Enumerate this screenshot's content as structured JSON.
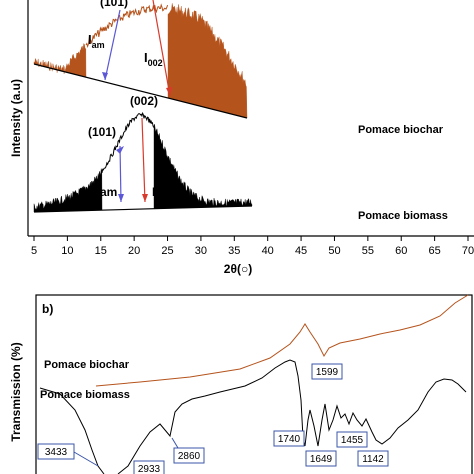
{
  "chart_data": [
    {
      "panel_label": "",
      "type": "line",
      "xlabel": "2θ(○)",
      "ylabel": "Intensity (a.u)",
      "xlim": [
        5,
        70
      ],
      "x_ticks": [
        5,
        10,
        15,
        20,
        25,
        30,
        35,
        40,
        45,
        50,
        55,
        60,
        65,
        70
      ],
      "grid": false,
      "series": [
        {
          "name": "Pomace biochar",
          "color": "#b5531c"
        },
        {
          "name": "Pomace biomass",
          "color": "#000000"
        }
      ],
      "annotations": {
        "biochar_peak_101": "(101)",
        "biochar_i_am": "I",
        "biochar_i_am_sub": "am",
        "biochar_i_002": "I",
        "biochar_i_002_sub": "002",
        "biomass_peak_002": "(002)",
        "biomass_peak_101": "(101)",
        "biomass_i_am_sub": "am",
        "biomass_i_002": "I"
      }
    },
    {
      "panel_label": "b)",
      "type": "line",
      "ylabel": "Transmission (%)",
      "grid": false,
      "series": [
        {
          "name": "Pomace biochar",
          "color": "#b5531c"
        },
        {
          "name": "Pomace biomass",
          "color": "#000000"
        }
      ],
      "peak_labels": [
        "1599",
        "3433",
        "2933",
        "2860",
        "1740",
        "1649",
        "1455",
        "1142"
      ]
    }
  ]
}
